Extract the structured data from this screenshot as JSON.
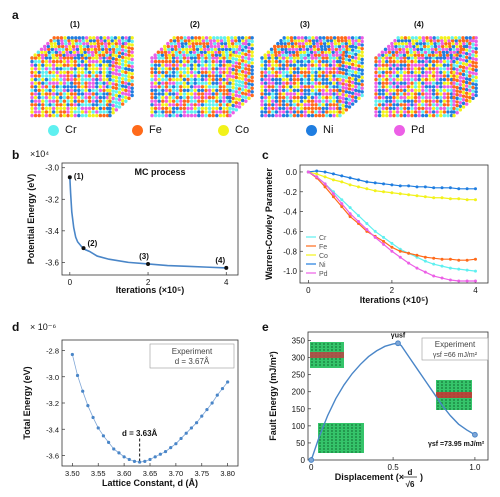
{
  "panels": {
    "a": {
      "letter": "a",
      "snapshots": [
        "(1)",
        "(2)",
        "(3)",
        "(4)"
      ],
      "elements": [
        {
          "name": "Cr",
          "color": "#5ff0f0"
        },
        {
          "name": "Fe",
          "color": "#ff6a1a"
        },
        {
          "name": "Co",
          "color": "#f2f21a"
        },
        {
          "name": "Ni",
          "color": "#1f7de0"
        },
        {
          "name": "Pd",
          "color": "#ec5fe6"
        }
      ]
    },
    "b": {
      "letter": "b",
      "title": "MC process",
      "exponent": "×10⁴"
    },
    "c": {
      "letter": "c"
    },
    "d": {
      "letter": "d",
      "exponent": "× 10⁻⁶",
      "legend_line1": "Experiment",
      "legend_line2": "d = 3.67Å",
      "annotation": "d = 3.63Å"
    },
    "e": {
      "letter": "e",
      "legend_line1": "Experiment",
      "legend_line2": "γsf =66 mJ/m²",
      "usf_label": "γusf",
      "sf_label": "γsf =73.95 mJ/m²"
    }
  },
  "chart_data": [
    {
      "id": "b",
      "type": "line",
      "title": "MC process",
      "xlabel": "Iterations (×10⁵)",
      "ylabel": "Potential Energy (eV)",
      "y_multiplier_label": "×10⁴",
      "xlim": [
        -0.2,
        4.3
      ],
      "ylim": [
        -3.68,
        -2.97
      ],
      "xticks": [
        0,
        2,
        4
      ],
      "yticks": [
        -3.0,
        -3.2,
        -3.4,
        -3.6
      ],
      "x": [
        0.0,
        0.02,
        0.05,
        0.1,
        0.15,
        0.2,
        0.3,
        0.4,
        0.5,
        0.7,
        1.0,
        1.5,
        2.0,
        2.5,
        3.0,
        3.5,
        4.0
      ],
      "y": [
        -3.06,
        -3.16,
        -3.28,
        -3.38,
        -3.44,
        -3.47,
        -3.5,
        -3.52,
        -3.53,
        -3.56,
        -3.58,
        -3.6,
        -3.61,
        -3.62,
        -3.625,
        -3.63,
        -3.635
      ],
      "markers": [
        {
          "label": "(1)",
          "x": 0.0,
          "y": -3.06
        },
        {
          "label": "(2)",
          "x": 0.35,
          "y": -3.51
        },
        {
          "label": "(3)",
          "x": 2.0,
          "y": -3.61
        },
        {
          "label": "(4)",
          "x": 4.0,
          "y": -3.635
        }
      ]
    },
    {
      "id": "c",
      "type": "line",
      "xlabel": "Iterations (×10⁵)",
      "ylabel": "Warren-Cowley Parameter",
      "xlim": [
        -0.2,
        4.3
      ],
      "ylim": [
        -1.12,
        0.07
      ],
      "xticks": [
        0,
        2,
        4
      ],
      "yticks": [
        0.0,
        -0.2,
        -0.4,
        -0.6,
        -0.8,
        -1.0
      ],
      "x": [
        0.0,
        0.2,
        0.4,
        0.6,
        0.8,
        1.0,
        1.2,
        1.4,
        1.6,
        1.8,
        2.0,
        2.2,
        2.4,
        2.6,
        2.8,
        3.0,
        3.2,
        3.4,
        3.6,
        3.8,
        4.0
      ],
      "series": [
        {
          "name": "Cr",
          "color": "#5ff0f0",
          "values": [
            0.0,
            -0.05,
            -0.12,
            -0.2,
            -0.28,
            -0.36,
            -0.44,
            -0.52,
            -0.6,
            -0.66,
            -0.72,
            -0.78,
            -0.82,
            -0.86,
            -0.9,
            -0.93,
            -0.95,
            -0.97,
            -0.98,
            -0.99,
            -1.0
          ]
        },
        {
          "name": "Fe",
          "color": "#ff6a1a",
          "values": [
            0.0,
            -0.06,
            -0.15,
            -0.25,
            -0.35,
            -0.45,
            -0.52,
            -0.6,
            -0.65,
            -0.7,
            -0.76,
            -0.8,
            -0.82,
            -0.84,
            -0.86,
            -0.87,
            -0.88,
            -0.88,
            -0.89,
            -0.89,
            -0.88
          ]
        },
        {
          "name": "Co",
          "color": "#f2f21a",
          "values": [
            0.0,
            -0.02,
            -0.05,
            -0.08,
            -0.1,
            -0.13,
            -0.15,
            -0.17,
            -0.19,
            -0.2,
            -0.21,
            -0.22,
            -0.23,
            -0.24,
            -0.25,
            -0.26,
            -0.26,
            -0.27,
            -0.27,
            -0.28,
            -0.28
          ]
        },
        {
          "name": "Ni",
          "color": "#1f7de0",
          "values": [
            0.0,
            0.01,
            0.0,
            -0.02,
            -0.04,
            -0.06,
            -0.08,
            -0.1,
            -0.11,
            -0.12,
            -0.13,
            -0.14,
            -0.14,
            -0.15,
            -0.15,
            -0.16,
            -0.16,
            -0.16,
            -0.17,
            -0.17,
            -0.17
          ]
        },
        {
          "name": "Pd",
          "color": "#ec5fe6",
          "values": [
            0.0,
            -0.05,
            -0.12,
            -0.22,
            -0.32,
            -0.42,
            -0.5,
            -0.58,
            -0.66,
            -0.73,
            -0.8,
            -0.86,
            -0.92,
            -0.97,
            -1.01,
            -1.05,
            -1.07,
            -1.09,
            -1.1,
            -1.1,
            -1.1
          ]
        }
      ]
    },
    {
      "id": "d",
      "type": "scatter",
      "xlabel": "Lattice Constant, d (Å)",
      "ylabel": "Total Energy (eV)",
      "y_multiplier_label": "× 10⁻⁶",
      "xlim": [
        3.48,
        3.82
      ],
      "ylim": [
        -3.68,
        -2.72
      ],
      "xticks": [
        3.5,
        3.55,
        3.6,
        3.65,
        3.7,
        3.75,
        3.8
      ],
      "yticks": [
        -2.8,
        -3.0,
        -3.2,
        -3.4,
        -3.6
      ],
      "x": [
        3.5,
        3.51,
        3.52,
        3.53,
        3.54,
        3.55,
        3.56,
        3.57,
        3.58,
        3.59,
        3.6,
        3.61,
        3.62,
        3.63,
        3.64,
        3.65,
        3.66,
        3.67,
        3.68,
        3.69,
        3.7,
        3.71,
        3.72,
        3.73,
        3.74,
        3.75,
        3.76,
        3.77,
        3.78,
        3.79,
        3.8
      ],
      "y": [
        -2.83,
        -2.99,
        -3.11,
        -3.22,
        -3.31,
        -3.39,
        -3.45,
        -3.5,
        -3.55,
        -3.58,
        -3.61,
        -3.63,
        -3.645,
        -3.65,
        -3.645,
        -3.63,
        -3.61,
        -3.59,
        -3.57,
        -3.54,
        -3.51,
        -3.47,
        -3.43,
        -3.39,
        -3.35,
        -3.3,
        -3.25,
        -3.2,
        -3.14,
        -3.09,
        -3.04
      ],
      "annotation": {
        "text": "d = 3.63Å",
        "x": 3.63
      }
    },
    {
      "id": "e",
      "type": "line",
      "xlabel": "Displacement (× d/√6)",
      "ylabel": "Fault Energy (mJ/m²)",
      "xlim": [
        -0.02,
        1.08
      ],
      "ylim": [
        0,
        375
      ],
      "xticks": [
        0,
        0.5,
        1.0
      ],
      "yticks": [
        0,
        50,
        100,
        150,
        200,
        250,
        300,
        350
      ],
      "x": [
        0.0,
        0.05,
        0.1,
        0.15,
        0.2,
        0.25,
        0.3,
        0.35,
        0.4,
        0.45,
        0.5,
        0.53,
        0.55,
        0.6,
        0.65,
        0.7,
        0.75,
        0.8,
        0.85,
        0.9,
        0.95,
        1.0
      ],
      "y": [
        0,
        70,
        130,
        180,
        220,
        253,
        280,
        303,
        320,
        333,
        340,
        342,
        335,
        300,
        265,
        230,
        195,
        160,
        130,
        105,
        88,
        74
      ],
      "markers": [
        {
          "label": "γusf",
          "x": 0.53,
          "y": 342
        },
        {
          "label": "γsf =73.95 mJ/m²",
          "x": 1.0,
          "y": 74
        }
      ]
    }
  ]
}
